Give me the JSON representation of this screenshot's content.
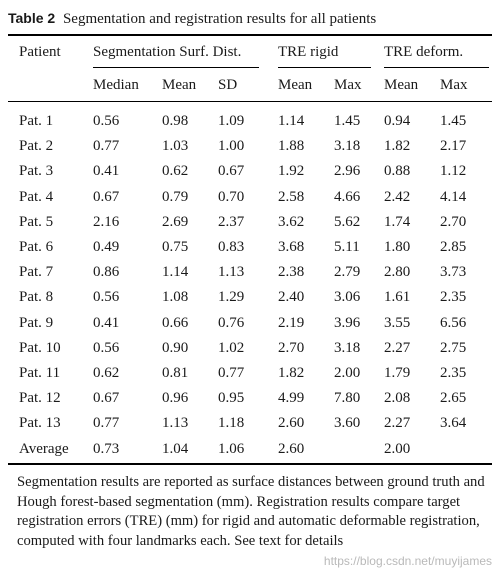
{
  "caption": {
    "label": "Table 2",
    "title": "Segmentation and registration results for all patients"
  },
  "table": {
    "group_headers": {
      "patient": "Patient",
      "segmentation": "Segmentation Surf. Dist.",
      "tre_rigid": "TRE rigid",
      "tre_deform": "TRE deform."
    },
    "sub_headers": [
      "Median",
      "Mean",
      "SD",
      "Mean",
      "Max",
      "Mean",
      "Max"
    ],
    "rows": [
      [
        "Pat. 1",
        "0.56",
        "0.98",
        "1.09",
        "1.14",
        "1.45",
        "0.94",
        "1.45"
      ],
      [
        "Pat. 2",
        "0.77",
        "1.03",
        "1.00",
        "1.88",
        "3.18",
        "1.82",
        "2.17"
      ],
      [
        "Pat. 3",
        "0.41",
        "0.62",
        "0.67",
        "1.92",
        "2.96",
        "0.88",
        "1.12"
      ],
      [
        "Pat. 4",
        "0.67",
        "0.79",
        "0.70",
        "2.58",
        "4.66",
        "2.42",
        "4.14"
      ],
      [
        "Pat. 5",
        "2.16",
        "2.69",
        "2.37",
        "3.62",
        "5.62",
        "1.74",
        "2.70"
      ],
      [
        "Pat. 6",
        "0.49",
        "0.75",
        "0.83",
        "3.68",
        "5.11",
        "1.80",
        "2.85"
      ],
      [
        "Pat. 7",
        "0.86",
        "1.14",
        "1.13",
        "2.38",
        "2.79",
        "2.80",
        "3.73"
      ],
      [
        "Pat. 8",
        "0.56",
        "1.08",
        "1.29",
        "2.40",
        "3.06",
        "1.61",
        "2.35"
      ],
      [
        "Pat. 9",
        "0.41",
        "0.66",
        "0.76",
        "2.19",
        "3.96",
        "3.55",
        "6.56"
      ],
      [
        "Pat. 10",
        "0.56",
        "0.90",
        "1.02",
        "2.70",
        "3.18",
        "2.27",
        "2.75"
      ],
      [
        "Pat. 11",
        "0.62",
        "0.81",
        "0.77",
        "1.82",
        "2.00",
        "1.79",
        "2.35"
      ],
      [
        "Pat. 12",
        "0.67",
        "0.96",
        "0.95",
        "4.99",
        "7.80",
        "2.08",
        "2.65"
      ],
      [
        "Pat. 13",
        "0.77",
        "1.13",
        "1.18",
        "2.60",
        "3.60",
        "2.27",
        "3.64"
      ],
      [
        "Average",
        "0.73",
        "1.04",
        "1.06",
        "2.60",
        "",
        "2.00",
        ""
      ]
    ]
  },
  "footnote": "Segmentation results are reported as surface distances between ground truth and Hough forest-based segmentation (mm). Registration results compare target registration errors (TRE) (mm) for rigid and automatic deformable registration, computed with four landmarks each. See text for details",
  "watermark": "https://blog.csdn.net/muyijames"
}
